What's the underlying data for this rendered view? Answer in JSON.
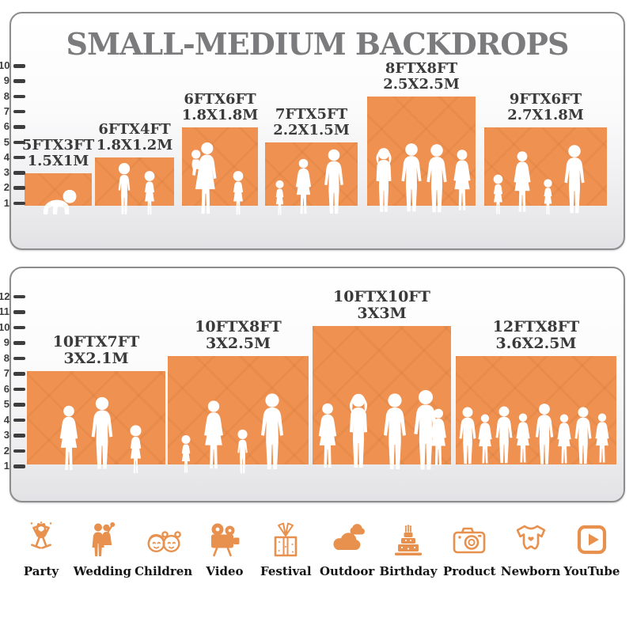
{
  "title": "SMALL-MEDIUM BACKDROPS",
  "colors": {
    "backdrop_orange": "#EF9150",
    "icon_orange": "#E8914E",
    "title_gray": "#7B7B7D",
    "label_dark": "#3A3A3A",
    "ruler_dark": "#3E3E3E"
  },
  "top_panel": {
    "ruler_labels": [
      "10",
      "9",
      "8",
      "7",
      "6",
      "5",
      "4",
      "3",
      "2",
      "1"
    ],
    "backdrops": [
      {
        "size_ft": "5FTX3FT",
        "size_m": "1.5X1M",
        "width_ft": 5,
        "height_ft": 3
      },
      {
        "size_ft": "6FTX4FT",
        "size_m": "1.8X1.2M",
        "width_ft": 6,
        "height_ft": 4
      },
      {
        "size_ft": "6FTX6FT",
        "size_m": "1.8X1.8M",
        "width_ft": 6,
        "height_ft": 6
      },
      {
        "size_ft": "7FTX5FT",
        "size_m": "2.2X1.5M",
        "width_ft": 7,
        "height_ft": 5
      },
      {
        "size_ft": "8FTX8FT",
        "size_m": "2.5X2.5M",
        "width_ft": 8,
        "height_ft": 8
      },
      {
        "size_ft": "9FTX6FT",
        "size_m": "2.7X1.8M",
        "width_ft": 9,
        "height_ft": 6
      }
    ]
  },
  "bottom_panel": {
    "ruler_labels": [
      "12",
      "11",
      "10",
      "9",
      "8",
      "7",
      "6",
      "5",
      "4",
      "3",
      "2",
      "1"
    ],
    "backdrops": [
      {
        "size_ft": "10FTX7FT",
        "size_m": "3X2.1M",
        "width_ft": 10,
        "height_ft": 7
      },
      {
        "size_ft": "10FTX8FT",
        "size_m": "3X2.5M",
        "width_ft": 10,
        "height_ft": 8
      },
      {
        "size_ft": "10FTX10FT",
        "size_m": "3X3M",
        "width_ft": 10,
        "height_ft": 10
      },
      {
        "size_ft": "12FTX8FT",
        "size_m": "3.6X2.5M",
        "width_ft": 12,
        "height_ft": 8
      }
    ]
  },
  "categories": [
    {
      "label": "Party",
      "icon": "party-icon"
    },
    {
      "label": "Wedding",
      "icon": "wedding-icon"
    },
    {
      "label": "Children",
      "icon": "children-icon"
    },
    {
      "label": "Video",
      "icon": "video-icon"
    },
    {
      "label": "Festival",
      "icon": "festival-icon"
    },
    {
      "label": "Outdoor",
      "icon": "outdoor-icon"
    },
    {
      "label": "Birthday",
      "icon": "birthday-icon"
    },
    {
      "label": "Product",
      "icon": "product-icon"
    },
    {
      "label": "Newborn",
      "icon": "newborn-icon"
    },
    {
      "label": "YouTube",
      "icon": "youtube-icon"
    }
  ]
}
